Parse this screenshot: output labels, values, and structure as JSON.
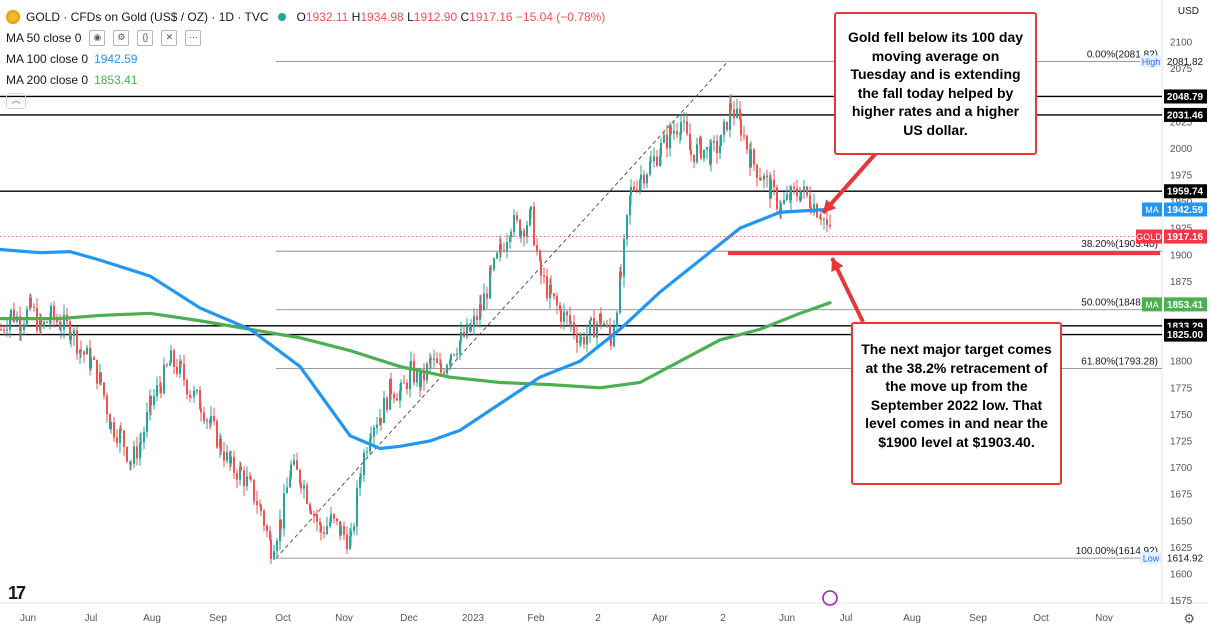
{
  "header": {
    "symbol_title": "GOLD · CFDs on Gold (US$ / OZ) · 1D · TVC",
    "ohlc": {
      "o_label": "O",
      "o": "1932.11",
      "h_label": "H",
      "h": "1934.98",
      "l_label": "L",
      "l": "1912.90",
      "c_label": "C",
      "c": "1917.16",
      "change": "−15.04 (−0.78%)"
    },
    "currency": "USD",
    "indicators": [
      {
        "label": "MA 50 close 0",
        "value": "",
        "color": "#4caf50"
      },
      {
        "label": "MA 100 close 0",
        "value": "1942.59",
        "color": "#2196f3"
      },
      {
        "label": "MA 200 close 0",
        "value": "1853.41",
        "color": "#4caf50"
      }
    ]
  },
  "callouts": {
    "ma_break": "Gold fell below its 100 day moving average on Tuesday and is extending the fall today helped by higher rates and a higher US dollar.",
    "fib_target": "The next major target comes at the 38.2% retracement of the move up from the September 2022 low. That level comes in and near the $1900 level at $1903.40."
  },
  "chart_data": {
    "type": "candlestick",
    "y_range": [
      1565,
      2117
    ],
    "y_ticks": [
      1575,
      1600,
      1625,
      1650,
      1675,
      1700,
      1725,
      1750,
      1775,
      1800,
      1825,
      1850,
      1875,
      1900,
      1925,
      1950,
      1975,
      2000,
      2025,
      2050,
      2075,
      2100
    ],
    "x_ticks": [
      "Jun",
      "Jul",
      "Aug",
      "Sep",
      "Oct",
      "Nov",
      "Dec",
      "2023",
      "Feb",
      "2",
      "Apr",
      "2",
      "Jun",
      "Jul",
      "Aug",
      "Sep",
      "Oct",
      "Nov"
    ],
    "horizontal_levels": [
      {
        "value": 2048.79,
        "label": "2048.79",
        "style": "black"
      },
      {
        "value": 2031.46,
        "label": "2031.46",
        "style": "black"
      },
      {
        "value": 1959.74,
        "label": "1959.74",
        "style": "black"
      },
      {
        "value": 1833.29,
        "label": "1833.29",
        "style": "black"
      },
      {
        "value": 1825.0,
        "label": "1825.00",
        "style": "black"
      }
    ],
    "fib_levels": [
      {
        "value": 2081.82,
        "label": "0.00%(2081.82)"
      },
      {
        "value": 1903.4,
        "label": "38.20%(1903.40)"
      },
      {
        "value": 1848.37,
        "label": "50.00%(1848.37)"
      },
      {
        "value": 1793.28,
        "label": "61.80%(1793.28)"
      },
      {
        "value": 1614.92,
        "label": "100.00%(1614.92)"
      }
    ],
    "price_tags": [
      {
        "value": 2081.82,
        "label": "2081.82",
        "tag": "High"
      },
      {
        "value": 1942.59,
        "label": "1942.59",
        "tag": "MA",
        "color": "#2196f3"
      },
      {
        "value": 1917.16,
        "label": "1917.16",
        "tag": "GOLD",
        "color": "#f23645"
      },
      {
        "value": 1853.41,
        "label": "1853.41",
        "tag": "MA",
        "color": "#4caf50"
      },
      {
        "value": 1614.92,
        "label": "1614.92",
        "tag": "Low"
      }
    ],
    "close_path": [
      [
        0,
        1830
      ],
      [
        10,
        1845
      ],
      [
        20,
        1838
      ],
      [
        30,
        1850
      ],
      [
        40,
        1830
      ],
      [
        50,
        1842
      ],
      [
        60,
        1835
      ],
      [
        70,
        1830
      ],
      [
        80,
        1810
      ],
      [
        90,
        1800
      ],
      [
        100,
        1780
      ],
      [
        110,
        1740
      ],
      [
        120,
        1730
      ],
      [
        130,
        1705
      ],
      [
        140,
        1725
      ],
      [
        150,
        1760
      ],
      [
        160,
        1780
      ],
      [
        170,
        1800
      ],
      [
        180,
        1790
      ],
      [
        190,
        1770
      ],
      [
        200,
        1760
      ],
      [
        210,
        1740
      ],
      [
        220,
        1720
      ],
      [
        230,
        1700
      ],
      [
        240,
        1695
      ],
      [
        250,
        1680
      ],
      [
        260,
        1660
      ],
      [
        270,
        1625
      ],
      [
        280,
        1650
      ],
      [
        290,
        1700
      ],
      [
        300,
        1690
      ],
      [
        310,
        1665
      ],
      [
        320,
        1640
      ],
      [
        330,
        1650
      ],
      [
        340,
        1640
      ],
      [
        350,
        1630
      ],
      [
        360,
        1700
      ],
      [
        370,
        1740
      ],
      [
        380,
        1750
      ],
      [
        390,
        1775
      ],
      [
        400,
        1770
      ],
      [
        410,
        1790
      ],
      [
        420,
        1780
      ],
      [
        430,
        1800
      ],
      [
        440,
        1790
      ],
      [
        450,
        1810
      ],
      [
        460,
        1820
      ],
      [
        470,
        1830
      ],
      [
        480,
        1850
      ],
      [
        490,
        1880
      ],
      [
        500,
        1905
      ],
      [
        510,
        1930
      ],
      [
        520,
        1925
      ],
      [
        530,
        1935
      ],
      [
        540,
        1880
      ],
      [
        550,
        1860
      ],
      [
        560,
        1845
      ],
      [
        570,
        1835
      ],
      [
        580,
        1820
      ],
      [
        590,
        1830
      ],
      [
        600,
        1840
      ],
      [
        610,
        1820
      ],
      [
        620,
        1880
      ],
      [
        630,
        1960
      ],
      [
        640,
        1975
      ],
      [
        650,
        1985
      ],
      [
        660,
        2000
      ],
      [
        670,
        2015
      ],
      [
        680,
        2025
      ],
      [
        690,
        1995
      ],
      [
        700,
        2000
      ],
      [
        710,
        1995
      ],
      [
        720,
        2005
      ],
      [
        730,
        2040
      ],
      [
        740,
        2020
      ],
      [
        750,
        1990
      ],
      [
        760,
        1975
      ],
      [
        770,
        1960
      ],
      [
        780,
        1945
      ],
      [
        790,
        1955
      ],
      [
        800,
        1960
      ],
      [
        810,
        1950
      ],
      [
        820,
        1940
      ],
      [
        830,
        1917
      ]
    ],
    "ma100_path": [
      [
        0,
        1905
      ],
      [
        40,
        1902
      ],
      [
        70,
        1903
      ],
      [
        100,
        1895
      ],
      [
        150,
        1880
      ],
      [
        200,
        1850
      ],
      [
        250,
        1830
      ],
      [
        300,
        1795
      ],
      [
        350,
        1730
      ],
      [
        380,
        1718
      ],
      [
        400,
        1720
      ],
      [
        430,
        1725
      ],
      [
        460,
        1735
      ],
      [
        500,
        1760
      ],
      [
        540,
        1785
      ],
      [
        580,
        1800
      ],
      [
        620,
        1830
      ],
      [
        660,
        1865
      ],
      [
        700,
        1895
      ],
      [
        740,
        1925
      ],
      [
        780,
        1940
      ],
      [
        826,
        1942.6
      ]
    ],
    "ma200_path": [
      [
        0,
        1840
      ],
      [
        60,
        1840
      ],
      [
        100,
        1843
      ],
      [
        150,
        1845
      ],
      [
        200,
        1838
      ],
      [
        250,
        1830
      ],
      [
        300,
        1822
      ],
      [
        350,
        1810
      ],
      [
        400,
        1795
      ],
      [
        450,
        1785
      ],
      [
        500,
        1780
      ],
      [
        550,
        1778
      ],
      [
        600,
        1775
      ],
      [
        640,
        1780
      ],
      [
        680,
        1800
      ],
      [
        720,
        1820
      ],
      [
        760,
        1830
      ],
      [
        800,
        1845
      ],
      [
        830,
        1855
      ]
    ],
    "trendline": [
      [
        276,
        1614.92
      ],
      [
        728,
        2081.82
      ]
    ],
    "arrow_ma": {
      "from": [
        877,
        152
      ],
      "to": [
        823,
        213
      ]
    },
    "arrow_target": {
      "from": [
        863,
        322
      ],
      "to": [
        832,
        258
      ]
    }
  }
}
